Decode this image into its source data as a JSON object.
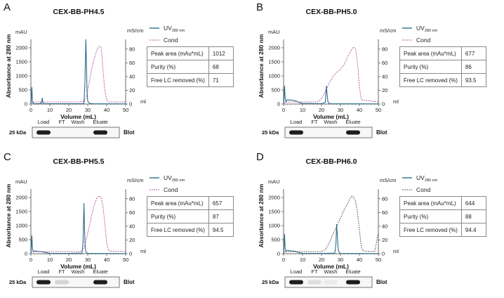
{
  "colors": {
    "uv": "#2c6e8a",
    "cond": "#a0308f",
    "cond_d": "#333333"
  },
  "chart_data": [
    {
      "type": "line",
      "panel_label": "A",
      "title": "CEX-BB-PH4.5",
      "xlabel": "Volume (mL)",
      "ylabel": "Absorbance at 280 nm",
      "y_unit": "mAU",
      "y2_unit": "mS/cm",
      "x_end_unit": "ml",
      "xlim": [
        0,
        50
      ],
      "ylim": [
        0,
        2200
      ],
      "y2lim": [
        0,
        90
      ],
      "x_ticks": [
        "0",
        "10",
        "20",
        "30",
        "40",
        "50"
      ],
      "y_ticks": [
        "0",
        "500",
        "1000",
        "1500",
        "2000"
      ],
      "y2_ticks": [
        "0",
        "20",
        "40",
        "60",
        "80"
      ],
      "legend": {
        "uv": "UV",
        "uv_sub": "280 nm",
        "cond": "Cond"
      },
      "series": [
        {
          "name": "UV280",
          "axis": "y",
          "x": [
            0,
            0.2,
            0.5,
            0.8,
            1.2,
            2,
            4,
            5.5,
            6,
            6.4,
            7,
            10,
            20,
            27,
            28,
            28.5,
            29,
            29.3,
            29.6,
            30,
            31,
            33,
            50
          ],
          "y": [
            0,
            120,
            600,
            80,
            20,
            10,
            10,
            30,
            220,
            40,
            15,
            10,
            10,
            10,
            30,
            700,
            2300,
            1500,
            500,
            100,
            20,
            10,
            5
          ]
        },
        {
          "name": "Cond",
          "axis": "y2",
          "x": [
            0,
            2,
            25,
            28,
            29,
            30,
            31,
            32,
            33,
            34,
            35,
            36,
            36.5,
            37,
            37.5,
            38,
            39,
            40,
            41,
            50
          ],
          "y": [
            2,
            3,
            3,
            4,
            8,
            20,
            35,
            50,
            62,
            72,
            80,
            84,
            84,
            82,
            72,
            50,
            20,
            6,
            3,
            3
          ]
        }
      ],
      "table": [
        {
          "label": "Peak area (mAu*mL)",
          "value": "1012"
        },
        {
          "label": "Purity (%)",
          "value": "68"
        },
        {
          "label": "Free LC removed (%)",
          "value": "71"
        }
      ],
      "blot": {
        "kda": "25 kDa",
        "lanes": [
          "Load",
          "FT",
          "Wash",
          "Eluate"
        ],
        "label": "Blot",
        "intensity": [
          1,
          0,
          0,
          1
        ]
      }
    },
    {
      "type": "line",
      "panel_label": "B",
      "title": "CEX-BB-PH5.0",
      "xlabel": "Volume (mL)",
      "ylabel": "Absorbance at 280 nm",
      "y_unit": "mAU",
      "y2_unit": "mS/cm",
      "x_end_unit": "ml",
      "xlim": [
        0,
        50
      ],
      "ylim": [
        0,
        2200
      ],
      "y2lim": [
        0,
        90
      ],
      "x_ticks": [
        "0",
        "10",
        "20",
        "30",
        "40",
        "50"
      ],
      "y_ticks": [
        "0",
        "500",
        "1000",
        "1500",
        "2000"
      ],
      "y2_ticks": [
        "0",
        "20",
        "40",
        "60",
        "80"
      ],
      "legend": {
        "uv": "UV",
        "uv_sub": "280 nm",
        "cond": "Cond"
      },
      "series": [
        {
          "name": "UV280",
          "axis": "y",
          "x": [
            0,
            0.2,
            0.5,
            0.8,
            1.2,
            2,
            4,
            6,
            8,
            10,
            20,
            22,
            22.6,
            23,
            23.4,
            24,
            25,
            50
          ],
          "y": [
            0,
            150,
            650,
            200,
            80,
            150,
            140,
            120,
            60,
            20,
            10,
            60,
            650,
            300,
            80,
            20,
            10,
            5
          ]
        },
        {
          "name": "Cond",
          "axis": "y2",
          "x": [
            0,
            2,
            18,
            20,
            22,
            24,
            26,
            28,
            30,
            32,
            34,
            36,
            37,
            38,
            39,
            40,
            41,
            50
          ],
          "y": [
            2,
            3,
            3,
            8,
            18,
            30,
            40,
            46,
            50,
            58,
            70,
            80,
            83,
            80,
            60,
            25,
            6,
            3
          ]
        }
      ],
      "table": [
        {
          "label": "Peak area (mAu*mL)",
          "value": "677"
        },
        {
          "label": "Purity (%)",
          "value": "86"
        },
        {
          "label": "Free LC removed (%)",
          "value": "93.5"
        }
      ],
      "blot": {
        "kda": "25 kDa",
        "lanes": [
          "Load",
          "FT",
          "Wash",
          "Eluate"
        ],
        "label": "Blot",
        "intensity": [
          1,
          0,
          0,
          1
        ]
      }
    },
    {
      "type": "line",
      "panel_label": "C",
      "title": "CEX-BB-PH5.5",
      "xlabel": "Volume (mL)",
      "ylabel": "Absorbance at 280 nm",
      "y_unit": "mAU",
      "y2_unit": "mS/cm",
      "x_end_unit": "ml",
      "xlim": [
        0,
        50
      ],
      "ylim": [
        0,
        2200
      ],
      "y2lim": [
        0,
        90
      ],
      "x_ticks": [
        "0",
        "10",
        "20",
        "30",
        "40",
        "50"
      ],
      "y_ticks": [
        "0",
        "500",
        "1000",
        "1500",
        "2000"
      ],
      "y2_ticks": [
        "0",
        "20",
        "40",
        "60",
        "80"
      ],
      "legend": {
        "uv": "UV",
        "uv_sub": "280 nm",
        "cond": "Cond"
      },
      "series": [
        {
          "name": "UV280",
          "axis": "y",
          "x": [
            0,
            0.2,
            0.5,
            0.8,
            1.2,
            2,
            4,
            6,
            8,
            10,
            20,
            27,
            27.5,
            28,
            28.3,
            28.6,
            29,
            30,
            50
          ],
          "y": [
            0,
            150,
            650,
            200,
            80,
            100,
            80,
            70,
            40,
            15,
            10,
            20,
            400,
            1800,
            900,
            300,
            60,
            10,
            5
          ]
        },
        {
          "name": "Cond",
          "axis": "y2",
          "x": [
            0,
            2,
            25,
            27,
            28,
            29,
            30,
            31,
            32,
            33,
            34,
            35,
            36,
            37,
            38,
            39,
            40,
            41,
            50
          ],
          "y": [
            2,
            3,
            3,
            4,
            8,
            18,
            30,
            42,
            55,
            66,
            75,
            82,
            84,
            82,
            70,
            45,
            15,
            4,
            3
          ]
        }
      ],
      "table": [
        {
          "label": "Peak area (mAu*mL)",
          "value": "657"
        },
        {
          "label": "Purity (%)",
          "value": "87"
        },
        {
          "label": "Free LC removed (%)",
          "value": "94.5"
        }
      ],
      "blot": {
        "kda": "25 kDa",
        "lanes": [
          "Load",
          "FT",
          "Wash",
          "Eluate"
        ],
        "label": "Blot",
        "intensity": [
          1,
          0.15,
          0,
          1
        ]
      }
    },
    {
      "type": "line",
      "panel_label": "D",
      "title": "CEX-BB-PH6.0",
      "xlabel": "Volume (mL)",
      "ylabel": "Absorbance at 280 nm",
      "y_unit": "mAU",
      "y2_unit": "mS/cm",
      "x_end_unit": "ml",
      "xlim": [
        0,
        50
      ],
      "ylim": [
        0,
        2200
      ],
      "y2lim": [
        0,
        90
      ],
      "x_ticks": [
        "0",
        "10",
        "20",
        "30",
        "40",
        "50"
      ],
      "y_ticks": [
        "0",
        "500",
        "1000",
        "1500",
        "2000"
      ],
      "y2_ticks": [
        "0",
        "20",
        "40",
        "60",
        "80"
      ],
      "legend": {
        "uv": "UV",
        "uv_sub": "280 nm",
        "cond": "Cond"
      },
      "series": [
        {
          "name": "UV280",
          "axis": "y",
          "x": [
            0,
            0.2,
            0.5,
            0.8,
            1.2,
            2,
            4,
            6,
            8,
            10,
            20,
            27,
            27.6,
            28,
            28.4,
            28.8,
            29.5,
            30,
            50
          ],
          "y": [
            0,
            150,
            700,
            200,
            80,
            120,
            100,
            90,
            40,
            15,
            10,
            20,
            300,
            1050,
            600,
            150,
            30,
            10,
            5
          ]
        },
        {
          "name": "Cond",
          "axis": "y2",
          "x": [
            0,
            2,
            20,
            22,
            24,
            26,
            28,
            30,
            32,
            34,
            35,
            36,
            37,
            38,
            39,
            40,
            41,
            42,
            48,
            50
          ],
          "y": [
            2,
            3,
            3,
            6,
            15,
            28,
            40,
            52,
            64,
            74,
            80,
            84,
            82,
            76,
            60,
            35,
            10,
            4,
            3,
            30
          ]
        }
      ],
      "table": [
        {
          "label": "Peak area (mAu*mL)",
          "value": "644"
        },
        {
          "label": "Purity (%)",
          "value": "88"
        },
        {
          "label": "Free LC removed (%)",
          "value": "94.4"
        }
      ],
      "blot": {
        "kda": "25 kDa",
        "lanes": [
          "Load",
          "FT",
          "Wash",
          "Eluate"
        ],
        "label": "Blot",
        "intensity": [
          1,
          0.1,
          0.05,
          1
        ]
      }
    }
  ]
}
